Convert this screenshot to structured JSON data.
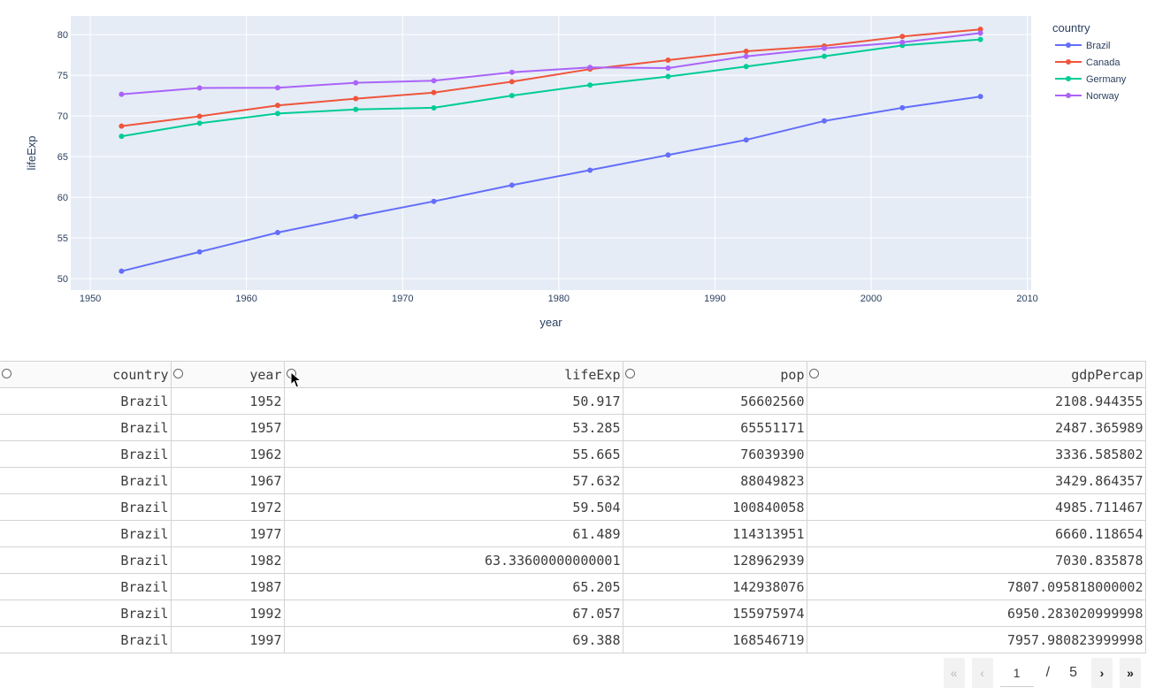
{
  "chart_data": {
    "type": "line",
    "xlabel": "year",
    "ylabel": "lifeExp",
    "legend_title": "country",
    "legend_position": "right",
    "xlim": [
      1948.75,
      2010.25
    ],
    "ylim": [
      48.6,
      82.3
    ],
    "x_ticks": [
      1950,
      1960,
      1970,
      1980,
      1990,
      2000,
      2010
    ],
    "y_ticks": [
      50,
      55,
      60,
      65,
      70,
      75,
      80
    ],
    "x": [
      1952,
      1957,
      1962,
      1967,
      1972,
      1977,
      1982,
      1987,
      1992,
      1997,
      2002,
      2007
    ],
    "series": [
      {
        "name": "Brazil",
        "color": "#636efa",
        "values": [
          50.917,
          53.285,
          55.665,
          57.632,
          59.504,
          61.489,
          63.336,
          65.205,
          67.057,
          69.388,
          71.006,
          72.39
        ]
      },
      {
        "name": "Canada",
        "color": "#ef553b",
        "values": [
          68.75,
          69.96,
          71.3,
          72.13,
          72.88,
          74.21,
          75.76,
          76.86,
          77.95,
          78.61,
          79.77,
          80.653
        ]
      },
      {
        "name": "Germany",
        "color": "#00cc96",
        "values": [
          67.5,
          69.1,
          70.3,
          70.8,
          71.0,
          72.5,
          73.8,
          74.847,
          76.07,
          77.34,
          78.67,
          79.406
        ]
      },
      {
        "name": "Norway",
        "color": "#ab63fa",
        "values": [
          72.67,
          73.44,
          73.47,
          74.08,
          74.34,
          75.37,
          75.97,
          75.89,
          77.32,
          78.32,
          79.05,
          80.196
        ]
      }
    ],
    "grid": true
  },
  "table": {
    "columns": [
      "country",
      "year",
      "lifeExp",
      "pop",
      "gdpPercap"
    ],
    "rows": [
      [
        "Brazil",
        "1952",
        "50.917",
        "56602560",
        "2108.944355"
      ],
      [
        "Brazil",
        "1957",
        "53.285",
        "65551171",
        "2487.365989"
      ],
      [
        "Brazil",
        "1962",
        "55.665",
        "76039390",
        "3336.585802"
      ],
      [
        "Brazil",
        "1967",
        "57.632",
        "88049823",
        "3429.864357"
      ],
      [
        "Brazil",
        "1972",
        "59.504",
        "100840058",
        "4985.711467"
      ],
      [
        "Brazil",
        "1977",
        "61.489",
        "114313951",
        "6660.118654"
      ],
      [
        "Brazil",
        "1982",
        "63.33600000000001",
        "128962939",
        "7030.835878"
      ],
      [
        "Brazil",
        "1987",
        "65.205",
        "142938076",
        "7807.095818000002"
      ],
      [
        "Brazil",
        "1992",
        "67.057",
        "155975974",
        "6950.283020999998"
      ],
      [
        "Brazil",
        "1997",
        "69.388",
        "168546719",
        "7957.980823999998"
      ]
    ]
  },
  "pagination": {
    "current_page": "1",
    "separator": "/",
    "total_pages": "5",
    "first_icon": "double-chevron-left-icon",
    "prev_icon": "chevron-left-icon",
    "next_icon": "chevron-right-icon",
    "last_icon": "double-chevron-right-icon"
  }
}
